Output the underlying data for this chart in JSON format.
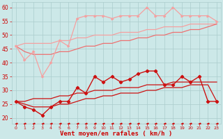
{
  "bg_color": "#cce8e8",
  "grid_color": "#aacccc",
  "xlabel": "Vent moyen/en rafales ( km/h )",
  "xlabel_color": "#cc0000",
  "tick_color": "#cc0000",
  "ylim": [
    18,
    62
  ],
  "xlim": [
    -0.5,
    23.5
  ],
  "yticks": [
    20,
    25,
    30,
    35,
    40,
    45,
    50,
    55,
    60
  ],
  "xticks": [
    0,
    1,
    2,
    3,
    4,
    5,
    6,
    7,
    8,
    9,
    10,
    11,
    12,
    13,
    14,
    15,
    16,
    17,
    18,
    19,
    20,
    21,
    22,
    23
  ],
  "hours": [
    0,
    1,
    2,
    3,
    4,
    5,
    6,
    7,
    8,
    9,
    10,
    11,
    12,
    13,
    14,
    15,
    16,
    17,
    18,
    19,
    20,
    21,
    22,
    23
  ],
  "line_upper_jagged": [
    46,
    41,
    44,
    35,
    40,
    48,
    46,
    56,
    57,
    57,
    57,
    56,
    57,
    57,
    57,
    60,
    57,
    57,
    60,
    57,
    57,
    57,
    57,
    55
  ],
  "line_upper_trend1": [
    46,
    47,
    47,
    47,
    47,
    48,
    48,
    49,
    49,
    50,
    50,
    50,
    51,
    51,
    51,
    52,
    52,
    53,
    53,
    53,
    54,
    54,
    54,
    54
  ],
  "line_upper_trend2": [
    46,
    44,
    43,
    43,
    43,
    44,
    44,
    45,
    46,
    46,
    47,
    47,
    48,
    48,
    49,
    49,
    50,
    50,
    51,
    51,
    52,
    52,
    53,
    54
  ],
  "line_lower_jagged": [
    26,
    24,
    23,
    21,
    24,
    26,
    26,
    31,
    29,
    35,
    33,
    35,
    33,
    34,
    36,
    37,
    37,
    32,
    32,
    35,
    33,
    35,
    26,
    26
  ],
  "line_lower_trend1": [
    26,
    26,
    27,
    27,
    27,
    28,
    28,
    29,
    29,
    30,
    30,
    30,
    31,
    31,
    31,
    32,
    32,
    32,
    33,
    33,
    33,
    33,
    33,
    33
  ],
  "line_lower_trend2": [
    26,
    25,
    24,
    24,
    24,
    25,
    25,
    26,
    27,
    27,
    28,
    28,
    29,
    29,
    29,
    30,
    30,
    31,
    31,
    31,
    32,
    32,
    32,
    26
  ],
  "line_dashed": [
    18,
    18,
    18,
    18,
    18,
    18,
    18,
    18,
    18,
    18,
    18,
    18,
    18,
    18,
    18,
    18,
    18,
    18,
    18,
    18,
    18,
    18,
    18,
    18
  ],
  "color_light_pink": "#f5a0a0",
  "color_medium_pink": "#ee7070",
  "color_dark_red": "#cc1111",
  "color_red": "#cc1111",
  "color_dashed_red": "#cc1111"
}
